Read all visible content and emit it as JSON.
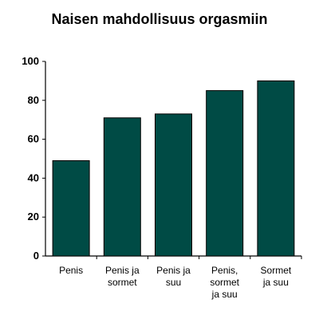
{
  "chart_data": {
    "type": "bar",
    "title": "Naisen mahdollisuus orgasmiin",
    "xlabel": "",
    "ylabel": "",
    "ylim": [
      0,
      100
    ],
    "yticks": [
      "0",
      "20",
      "40",
      "60",
      "80",
      "100"
    ],
    "categories": [
      [
        "Penis"
      ],
      [
        "Penis ja",
        "sormet"
      ],
      [
        "Penis ja",
        "suu"
      ],
      [
        "Penis,",
        "sormet",
        "ja suu"
      ],
      [
        "Sormet",
        "ja suu"
      ]
    ],
    "values": [
      49,
      71,
      73,
      85,
      90
    ],
    "bar_color": "#004b45",
    "grid": false
  }
}
